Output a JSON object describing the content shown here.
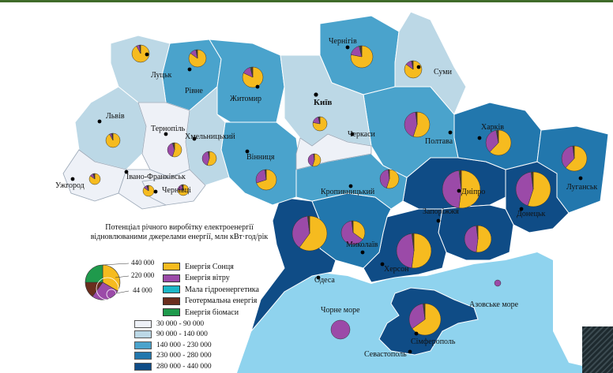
{
  "colors": {
    "class1": "#eef1f7",
    "class2": "#bcd8e6",
    "class3": "#4aa3cc",
    "class4": "#2277ad",
    "class5": "#0f4c86",
    "sea": "#8fd3ee",
    "solar": "#f6bb1f",
    "wind": "#9b4aa8",
    "hydro": "#1bb7c7",
    "geo": "#6a2e1e",
    "bio": "#1f9a4c"
  },
  "legend": {
    "title": "Потенціал річного виробітку електроенергії відновлюваними джерелами енергії, млн кВт·год/рік",
    "scale_values": [
      "440 000",
      "220 000",
      "44 000"
    ],
    "sources": [
      {
        "label": "Енергія Сонця",
        "color": "#f6bb1f"
      },
      {
        "label": "Енергія вітру",
        "color": "#9b4aa8"
      },
      {
        "label": "Мала гідроенергетика",
        "color": "#1bb7c7"
      },
      {
        "label": "Геотермальна енергія",
        "color": "#6a2e1e"
      },
      {
        "label": "Енергія біомаси",
        "color": "#1f9a4c"
      }
    ],
    "classes": [
      {
        "label": "30 000 - 90 000",
        "color": "#eef1f7"
      },
      {
        "label": "90 000 - 140 000",
        "color": "#bcd8e6"
      },
      {
        "label": "140 000 - 230 000",
        "color": "#4aa3cc"
      },
      {
        "label": "230 000 - 280 000",
        "color": "#2277ad"
      },
      {
        "label": "280 000 - 440 000",
        "color": "#0f4c86"
      }
    ]
  },
  "seas": {
    "black": "Чорне море",
    "azov": "Азовське море"
  },
  "cities": {
    "lutsk": "Луцьк",
    "rivne": "Рівне",
    "zhytomyr": "Житомир",
    "chernihiv": "Чернігів",
    "sumy": "Суми",
    "kyiv": "Київ",
    "lviv": "Львів",
    "ternopil": "Тернопіль",
    "khmelnytskyi": "Хмельницький",
    "ivano": "Івано-Франківськ",
    "uzhhorod": "Ужгород",
    "chernivtsi": "Чернівці",
    "vinnytsia": "Вінниця",
    "cherkasy": "Черкаси",
    "poltava": "Полтава",
    "kharkiv": "Харків",
    "kropyvnytskyi": "Кропивницький",
    "dnipro": "Дніпро",
    "luhansk": "Луганськ",
    "donetsk": "Донецьк",
    "zaporizhzhia": "Запоріжжя",
    "mykolaiv": "Миколаїв",
    "odesa": "Одеса",
    "kherson": "Херсон",
    "simferopol": "Сімферополь",
    "sevastopol": "Севастополь"
  }
}
